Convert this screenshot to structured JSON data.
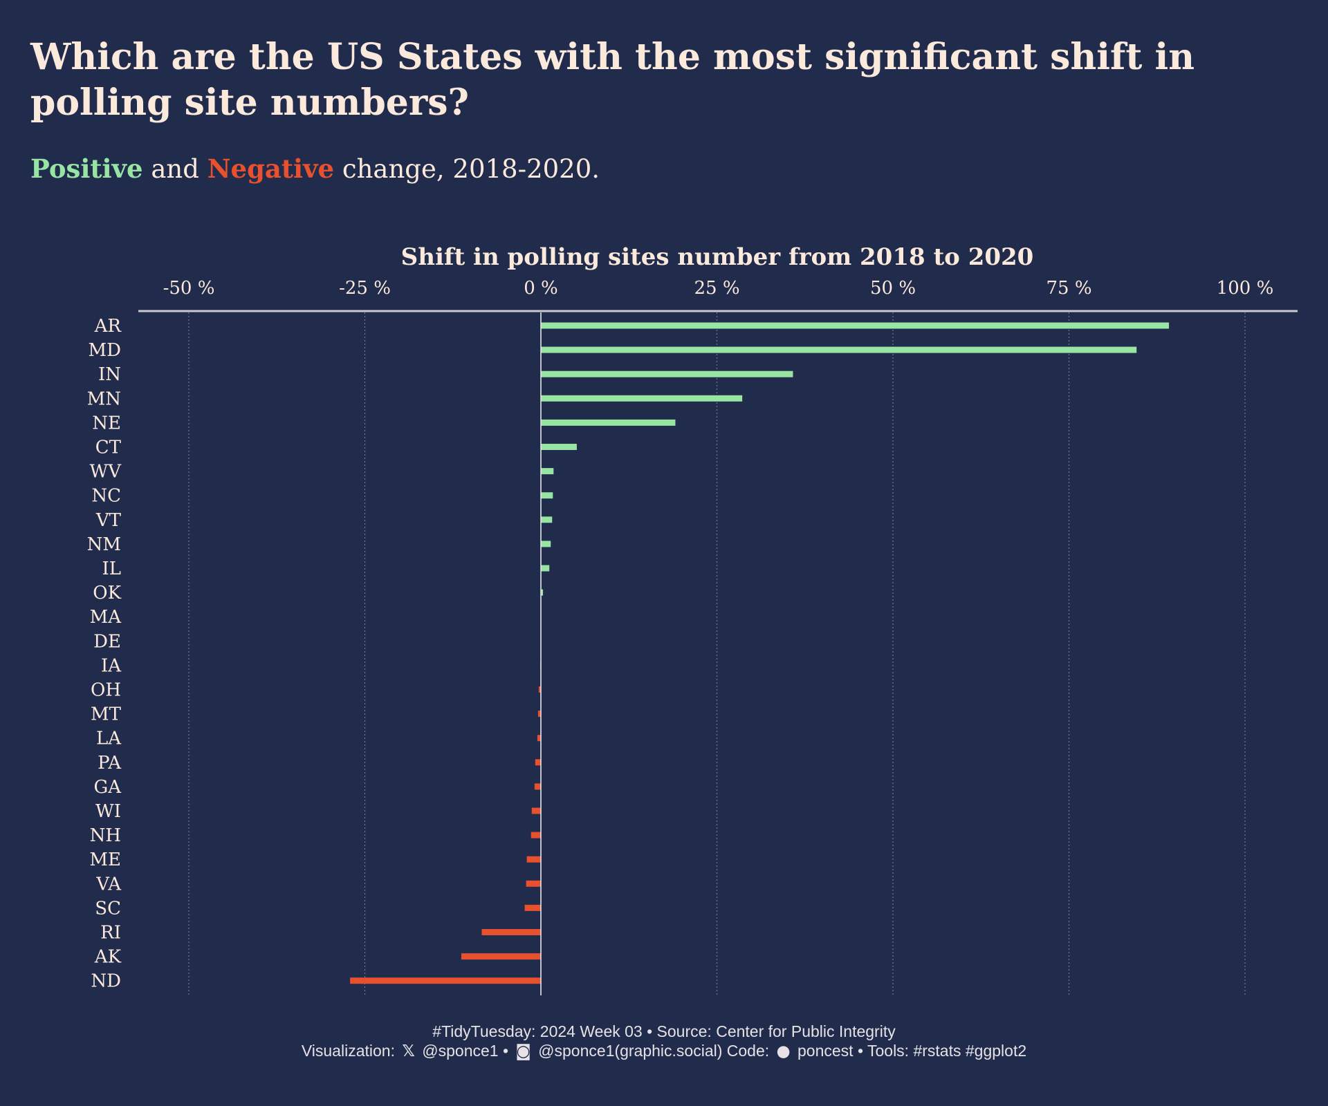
{
  "header": {
    "title": "Which are the US States with the most significant shift in polling site numbers?",
    "subtitle_pos": "Positive",
    "subtitle_and": " and ",
    "subtitle_neg": "Negative",
    "subtitle_rest": " change, 2018-2020."
  },
  "colors": {
    "background": "#212c4c",
    "positive": "#98e4a3",
    "negative": "#e8502e",
    "text": "#fbe9dc",
    "axis_line": "#c9c9cf",
    "grid": "#6f7790"
  },
  "chart_data": {
    "type": "bar",
    "orientation": "horizontal",
    "title": "Shift in polling sites number from 2018 to 2020",
    "x_axis_position": "top",
    "xlim": [
      -50,
      100
    ],
    "x_ticks": [
      -50,
      -25,
      0,
      25,
      50,
      75,
      100
    ],
    "x_tick_labels": [
      "-50 %",
      "-25 %",
      "0 %",
      "25 %",
      "50 %",
      "75 %",
      "100 %"
    ],
    "grid": "vertical dotted",
    "categories": [
      "AR",
      "MD",
      "IN",
      "MN",
      "NE",
      "CT",
      "WV",
      "NC",
      "VT",
      "NM",
      "IL",
      "OK",
      "MA",
      "DE",
      "IA",
      "OH",
      "MT",
      "LA",
      "PA",
      "GA",
      "WI",
      "NH",
      "ME",
      "VA",
      "SC",
      "RI",
      "AK",
      "ND"
    ],
    "values": [
      89.2,
      84.6,
      35.8,
      28.6,
      19.1,
      5.1,
      1.8,
      1.7,
      1.6,
      1.4,
      1.2,
      0.3,
      0.0,
      0.0,
      -0.1,
      -0.3,
      -0.4,
      -0.5,
      -0.8,
      -0.9,
      -1.3,
      -1.4,
      -2.0,
      -2.1,
      -2.3,
      -8.4,
      -11.3,
      -27.1
    ]
  },
  "caption": {
    "line1": "#TidyTuesday: 2024 Week 03 • Source: Center for Public Integrity",
    "line2_a": "Visualization: ",
    "icon_x": "x-logo-icon",
    "line2_b": " @sponce1 • ",
    "icon_mastodon": "mastodon-icon",
    "line2_c": " @sponce1(graphic.social) Code: ",
    "icon_github": "github-icon",
    "line2_d": " poncest • Tools: #rstats #ggplot2"
  }
}
